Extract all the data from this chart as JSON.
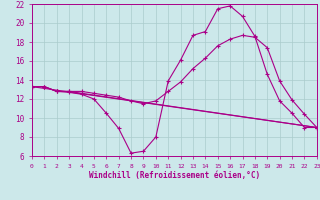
{
  "xlabel": "Windchill (Refroidissement éolien,°C)",
  "xlim": [
    0,
    23
  ],
  "ylim": [
    6,
    22
  ],
  "xticks": [
    0,
    1,
    2,
    3,
    4,
    5,
    6,
    7,
    8,
    9,
    10,
    11,
    12,
    13,
    14,
    15,
    16,
    17,
    18,
    19,
    20,
    21,
    22,
    23
  ],
  "yticks": [
    6,
    8,
    10,
    12,
    14,
    16,
    18,
    20,
    22
  ],
  "bg_color": "#cce8ea",
  "line_color": "#aa0088",
  "grid_color": "#aacccc",
  "curve1_x": [
    0,
    1,
    2,
    3,
    4,
    5,
    6,
    7,
    8,
    9,
    10,
    11,
    12,
    13,
    14,
    15,
    16,
    17,
    18,
    19,
    20,
    21,
    22,
    23
  ],
  "curve1_y": [
    13.3,
    13.3,
    12.8,
    12.7,
    12.5,
    12.0,
    10.5,
    8.9,
    6.3,
    6.5,
    8.0,
    13.9,
    16.1,
    18.7,
    19.1,
    21.5,
    21.8,
    20.7,
    18.6,
    14.6,
    11.8,
    10.5,
    9.0,
    9.0
  ],
  "curve2_x": [
    0,
    1,
    2,
    3,
    4,
    5,
    6,
    7,
    8,
    9,
    10,
    11,
    12,
    13,
    14,
    15,
    16,
    17,
    18,
    19,
    20,
    21,
    22,
    23
  ],
  "curve2_y": [
    13.3,
    13.3,
    12.8,
    12.8,
    12.8,
    12.6,
    12.4,
    12.2,
    11.8,
    11.5,
    11.8,
    12.8,
    13.8,
    15.2,
    16.3,
    17.6,
    18.3,
    18.7,
    18.5,
    17.4,
    13.9,
    11.9,
    10.4,
    9.0
  ],
  "curve3_x": [
    0,
    1,
    2,
    3,
    4,
    23
  ],
  "curve3_y": [
    13.3,
    13.3,
    12.8,
    12.8,
    12.6,
    9.0
  ],
  "curve4_x": [
    0,
    23
  ],
  "curve4_y": [
    13.3,
    9.0
  ]
}
